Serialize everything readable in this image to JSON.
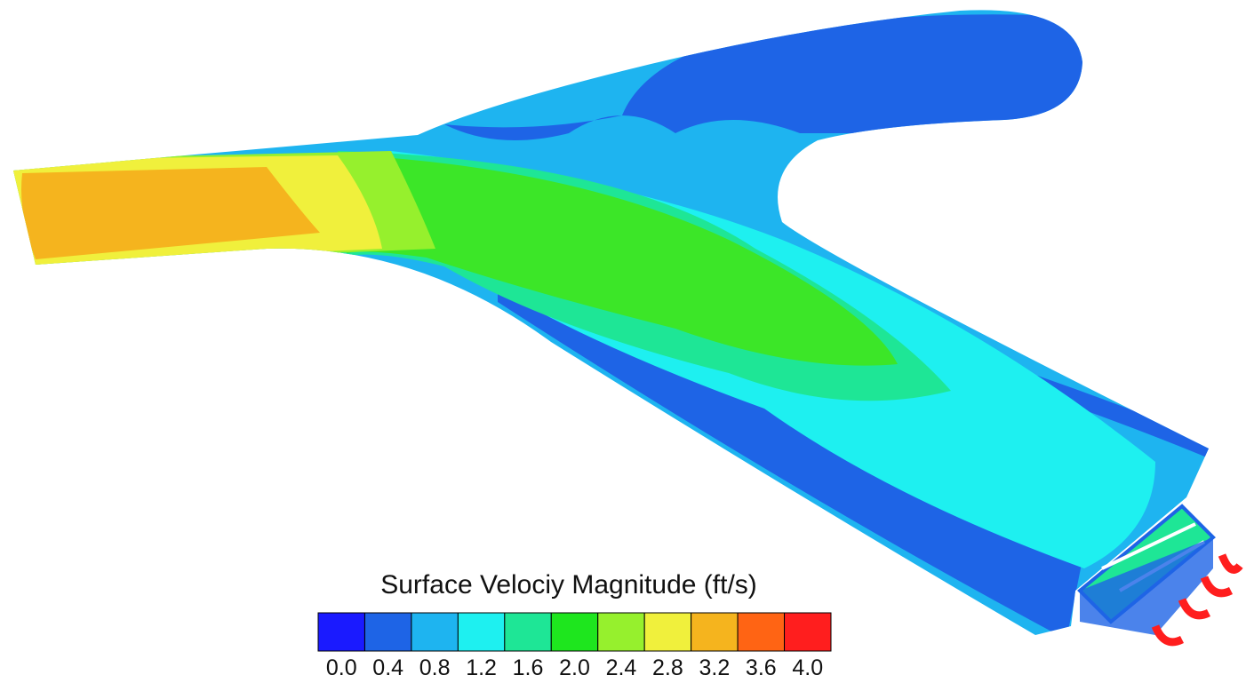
{
  "legend": {
    "title": "Surface Velociy Magnitude (ft/s)",
    "ticks": [
      "0.0",
      "0.4",
      "0.8",
      "1.2",
      "1.6",
      "2.0",
      "2.4",
      "2.8",
      "3.2",
      "3.6",
      "4.0"
    ],
    "colors": [
      "#1a1aff",
      "#1e64e6",
      "#1eb4f0",
      "#1ef0f0",
      "#1ee696",
      "#1ee61e",
      "#96f02d",
      "#f0f03c",
      "#f5b41e",
      "#ff6414",
      "#ff1e1e"
    ]
  }
}
